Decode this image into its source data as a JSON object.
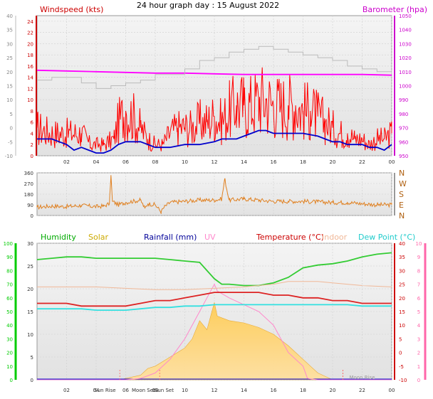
{
  "title": "24 hour graph day : 15 August 2022",
  "chart_data": [
    {
      "type": "line",
      "panel": "wind-baro",
      "x_ticks": [
        "02",
        "04",
        "06",
        "08",
        "10",
        "12",
        "14",
        "16",
        "18",
        "20",
        "22",
        "00"
      ],
      "left_axis": {
        "label": "Windspeed (kts)",
        "ticks": [
          24,
          22,
          20,
          18,
          16,
          14,
          12,
          10,
          8,
          6,
          4,
          2,
          0
        ],
        "ylim": [
          0,
          25
        ],
        "color": "#cc0000"
      },
      "outer_left_axis": {
        "ticks": [
          40,
          35,
          30,
          25,
          20,
          15,
          10,
          5,
          0,
          -5,
          -10
        ]
      },
      "right_axis": {
        "label": "Barometer (hpa)",
        "ticks": [
          1050,
          1040,
          1030,
          1020,
          1010,
          1000,
          990,
          980,
          970,
          960,
          950
        ],
        "ylim": [
          950,
          1050
        ],
        "color": "#cc00cc"
      },
      "series": [
        {
          "name": "Windspeed (kts)",
          "color": "#ff0000",
          "axis": "left",
          "x": [
            0,
            1,
            2,
            3,
            3.6,
            4.5,
            5.2,
            5.5,
            6,
            6.5,
            7,
            7.5,
            8,
            8.5,
            9,
            9.5,
            10,
            10.5,
            11,
            11.5,
            12,
            12.5,
            13,
            13.5,
            14,
            14.5,
            15,
            15.5,
            16,
            16.5,
            17,
            17.5,
            18,
            18.5,
            19,
            19.5,
            20,
            20.5,
            21,
            21.5,
            22,
            22.5,
            23,
            23.5,
            24
          ],
          "values": [
            5,
            4,
            4,
            4,
            2,
            2,
            3,
            6,
            8,
            7,
            5,
            3,
            2,
            2,
            4,
            5,
            5,
            5,
            6,
            6,
            7,
            6,
            8,
            9,
            9,
            9,
            10,
            10,
            9,
            9,
            9,
            9,
            8,
            8,
            7,
            6,
            5,
            4,
            4,
            3,
            3,
            2,
            3,
            3,
            4
          ]
        },
        {
          "name": "Wind average",
          "color": "#0000cc",
          "axis": "left",
          "x": [
            0,
            1,
            1.5,
            2,
            2.5,
            3,
            3.5,
            4,
            4.5,
            5,
            5.5,
            6,
            6.5,
            7,
            7.5,
            8,
            8.5,
            9,
            10,
            11,
            12,
            12.5,
            13,
            13.5,
            14,
            14.5,
            15,
            15.5,
            16,
            17,
            18,
            19,
            19.5,
            20,
            20.5,
            21,
            21.5,
            22,
            22.5,
            23,
            23.5,
            24
          ],
          "values": [
            3,
            3,
            2.5,
            2,
            1,
            1.5,
            1,
            0.5,
            0.5,
            1,
            2,
            2.5,
            2.5,
            2.5,
            2,
            1.5,
            1.5,
            1.5,
            2,
            2,
            2.5,
            3,
            3,
            3,
            3.5,
            4,
            4.5,
            4.5,
            4,
            4,
            4,
            3.5,
            3,
            2.5,
            2.5,
            2,
            2,
            2,
            1.5,
            1.5,
            1,
            2
          ]
        },
        {
          "name": "Barometer (hpa)",
          "color": "#ff00ff",
          "axis": "right",
          "x": [
            0,
            2,
            4,
            6,
            8,
            10,
            12,
            14,
            16,
            18,
            20,
            22,
            24
          ],
          "values": [
            1011,
            1010.5,
            1010,
            1009.5,
            1009,
            1009,
            1008.5,
            1008,
            1008,
            1008,
            1008,
            1008,
            1007.5
          ]
        },
        {
          "name": "Gust trend",
          "color": "#bbbbbb",
          "axis": "outer_left",
          "x": [
            0,
            1,
            3,
            4,
            4.5,
            5,
            6,
            7,
            8,
            10,
            11,
            12,
            13,
            14,
            15,
            16,
            17,
            18,
            19,
            20,
            21,
            22,
            23,
            24
          ],
          "values": [
            17,
            18,
            16,
            14,
            14,
            15,
            16,
            17,
            19,
            21,
            24,
            25,
            27,
            28,
            29,
            28,
            27,
            26,
            25,
            24,
            22,
            21,
            20,
            19
          ]
        }
      ]
    },
    {
      "type": "line",
      "panel": "wind-direction",
      "x_ticks": [],
      "left_axis": {
        "ticks": [
          360,
          270,
          180,
          90,
          0
        ],
        "ylim": [
          0,
          360
        ]
      },
      "right_axis": {
        "ticks": [
          "N",
          "W",
          "S",
          "E",
          "N"
        ]
      },
      "series": [
        {
          "name": "Wind direction",
          "color": "#e08020",
          "x": [
            0,
            1,
            2,
            3,
            4,
            4.5,
            4.9,
            5.0,
            5.1,
            5.5,
            6,
            6.5,
            7,
            7.3,
            7.5,
            8,
            8.4,
            8.6,
            9,
            10,
            11,
            12,
            12.5,
            12.7,
            13,
            14,
            15,
            16,
            17,
            18,
            19,
            20,
            21,
            22,
            23,
            24
          ],
          "values": [
            70,
            80,
            75,
            85,
            75,
            80,
            100,
            340,
            120,
            90,
            110,
            120,
            130,
            60,
            100,
            90,
            30,
            70,
            110,
            120,
            130,
            130,
            140,
            310,
            130,
            140,
            130,
            120,
            120,
            120,
            115,
            110,
            110,
            100,
            90,
            90
          ]
        }
      ]
    },
    {
      "type": "area",
      "panel": "temp-hum-solar",
      "x_ticks": [
        "02",
        "04",
        "06",
        "08",
        "10",
        "12",
        "14",
        "16",
        "18",
        "20",
        "22",
        "00"
      ],
      "left_axis": {
        "ticks": [
          30,
          25,
          20,
          15,
          10,
          5,
          0
        ],
        "ylim": [
          0,
          30
        ]
      },
      "outer_left_axis": {
        "label": "Humidity",
        "ticks": [
          100,
          90,
          80,
          70,
          60,
          50,
          40,
          30,
          20,
          10,
          0
        ],
        "color": "#00cc00"
      },
      "right_axis": {
        "label": "Temperature (°C)",
        "ticks": [
          40,
          35,
          30,
          25,
          20,
          15,
          10,
          5,
          0,
          -5,
          -10
        ],
        "ylim": [
          -10,
          40
        ],
        "color": "#cc0000"
      },
      "outer_right_axis": {
        "ticks": [
          10,
          9,
          8,
          7,
          6,
          5,
          4,
          3,
          2,
          1,
          0
        ],
        "color": "#ff66aa"
      },
      "legend": [
        "Humidity",
        "Solar",
        "Rainfall (mm)",
        "UV",
        "Temperature (°C)",
        "Indoor",
        "Dew Point (°C)"
      ],
      "annotations": [
        "Sun Rise",
        "Moon Set",
        "Sun Set",
        "Moon Rise"
      ],
      "series": [
        {
          "name": "Humidity",
          "color": "#33cc33",
          "x": [
            0,
            1,
            2,
            3,
            4,
            5,
            6,
            7,
            8,
            9,
            10,
            11,
            11.5,
            12,
            12.5,
            13,
            14,
            15,
            16,
            17,
            18,
            19,
            20,
            21,
            22,
            23,
            24
          ],
          "values": [
            88,
            89,
            90,
            90,
            89,
            89,
            89,
            89,
            89,
            88,
            87,
            86,
            80,
            74,
            70,
            70,
            69,
            69,
            71,
            75,
            82,
            84,
            85,
            87,
            90,
            92,
            93
          ]
        },
        {
          "name": "Solar",
          "color": "#ffcc44",
          "x": [
            0,
            5.6,
            6,
            7,
            7.5,
            8,
            9,
            10,
            10.5,
            11,
            11.5,
            12,
            12.2,
            13,
            14,
            15,
            16,
            17,
            18,
            18.5,
            19,
            20,
            24
          ],
          "values": [
            0,
            0,
            0.3,
            1,
            2.5,
            3,
            5,
            7,
            9,
            13,
            11,
            17,
            14,
            13,
            12.5,
            11.5,
            10,
            7.5,
            4.5,
            3,
            1.5,
            0,
            0
          ]
        },
        {
          "name": "Rainfall (mm)",
          "color": "#0000cc",
          "x": [
            0,
            24
          ],
          "values": [
            0,
            0
          ]
        },
        {
          "name": "UV",
          "color": "#ff88cc",
          "x": [
            0,
            6,
            7,
            8,
            9,
            10,
            10.5,
            11,
            11.5,
            12,
            12.2,
            13,
            14,
            15,
            16,
            17,
            18,
            18.3,
            19,
            24
          ],
          "values": [
            0,
            0,
            0.1,
            0.5,
            1.5,
            3,
            4,
            5,
            6,
            7,
            6.5,
            6,
            5.5,
            5,
            4,
            2,
            1,
            0.1,
            0,
            0
          ]
        },
        {
          "name": "Temperature (°C)",
          "color": "#dd2222",
          "x": [
            0,
            1,
            2,
            3,
            4,
            5,
            6,
            7,
            8,
            9,
            10,
            11,
            12,
            13,
            14,
            15,
            16,
            17,
            18,
            19,
            20,
            21,
            22,
            23,
            24
          ],
          "values": [
            18,
            18,
            18,
            17,
            17,
            17,
            17,
            18,
            19,
            19,
            20,
            21,
            22,
            22,
            22,
            22,
            21,
            21,
            20,
            20,
            19,
            19,
            18,
            18,
            18
          ]
        },
        {
          "name": "Indoor",
          "color": "#f0b898",
          "x": [
            0,
            2,
            4,
            6,
            8,
            10,
            12,
            14,
            16,
            17,
            18,
            19,
            20,
            22,
            24
          ],
          "values": [
            24,
            24,
            24,
            23.5,
            23,
            23,
            23.5,
            24,
            25,
            26,
            26,
            26,
            25.5,
            24.5,
            24
          ]
        },
        {
          "name": "Dew Point (°C)",
          "color": "#33e0e0",
          "x": [
            0,
            1,
            2,
            3,
            4,
            5,
            6,
            7,
            8,
            9,
            10,
            11,
            12,
            13,
            14,
            15,
            16,
            17,
            18,
            19,
            20,
            21,
            22,
            23,
            24
          ],
          "values": [
            16,
            16,
            16,
            16,
            15.5,
            15.5,
            15.5,
            16,
            16.5,
            16.5,
            17,
            17,
            17.5,
            17.5,
            17.5,
            17.5,
            17.5,
            17.5,
            17.5,
            17.5,
            17.5,
            17.5,
            17,
            17,
            17
          ]
        }
      ]
    }
  ]
}
